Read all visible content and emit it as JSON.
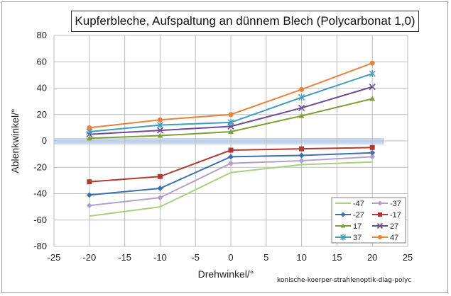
{
  "chart_data": {
    "type": "line",
    "title": "Kupferbleche, Aufspaltung an dünnem Blech (Polycarbonat 1,0)",
    "xlabel": "Drehwinkel/°",
    "ylabel": "Ablenkwinkel/°",
    "xlim": [
      -25,
      25
    ],
    "ylim": [
      -80,
      80
    ],
    "x_ticks": [
      "-25",
      "-20",
      "-15",
      "-10",
      "-5",
      "0",
      "5",
      "10",
      "15",
      "20",
      "25"
    ],
    "y_ticks": [
      "80",
      "60",
      "40",
      "20",
      "0",
      "-20",
      "-40",
      "-60",
      "-80"
    ],
    "grid": true,
    "legend_position": "bottom-right",
    "zero_band_color": "#c6d9f1",
    "x": [
      -20,
      -10,
      0,
      10,
      20
    ],
    "series": [
      {
        "name": "-47",
        "color": "#a9cf7f",
        "marker": "none",
        "values": [
          -57,
          -50,
          -24,
          -18,
          -16
        ]
      },
      {
        "name": "-37",
        "color": "#b09fcb",
        "marker": "diamond",
        "values": [
          -49,
          -43,
          -17,
          -15,
          -12
        ]
      },
      {
        "name": "-27",
        "color": "#3d6fb0",
        "marker": "diamond",
        "values": [
          -41,
          -36,
          -12,
          -11,
          -9
        ]
      },
      {
        "name": "-17",
        "color": "#b23a32",
        "marker": "square",
        "values": [
          -31,
          -27,
          -7,
          -6,
          -5
        ]
      },
      {
        "name": "17",
        "color": "#7f9e35",
        "marker": "triangle",
        "values": [
          2,
          4,
          7,
          19,
          32
        ]
      },
      {
        "name": "27",
        "color": "#6c4b96",
        "marker": "x",
        "values": [
          5,
          8,
          11,
          25,
          41
        ]
      },
      {
        "name": "37",
        "color": "#3f9cbd",
        "marker": "star",
        "values": [
          7,
          12,
          14,
          33,
          51
        ]
      },
      {
        "name": "47",
        "color": "#e8823a",
        "marker": "circle",
        "values": [
          10,
          16,
          20,
          39,
          59
        ]
      }
    ]
  },
  "watermark": "konische-koerper-strahlenoptik-diag-polyc"
}
